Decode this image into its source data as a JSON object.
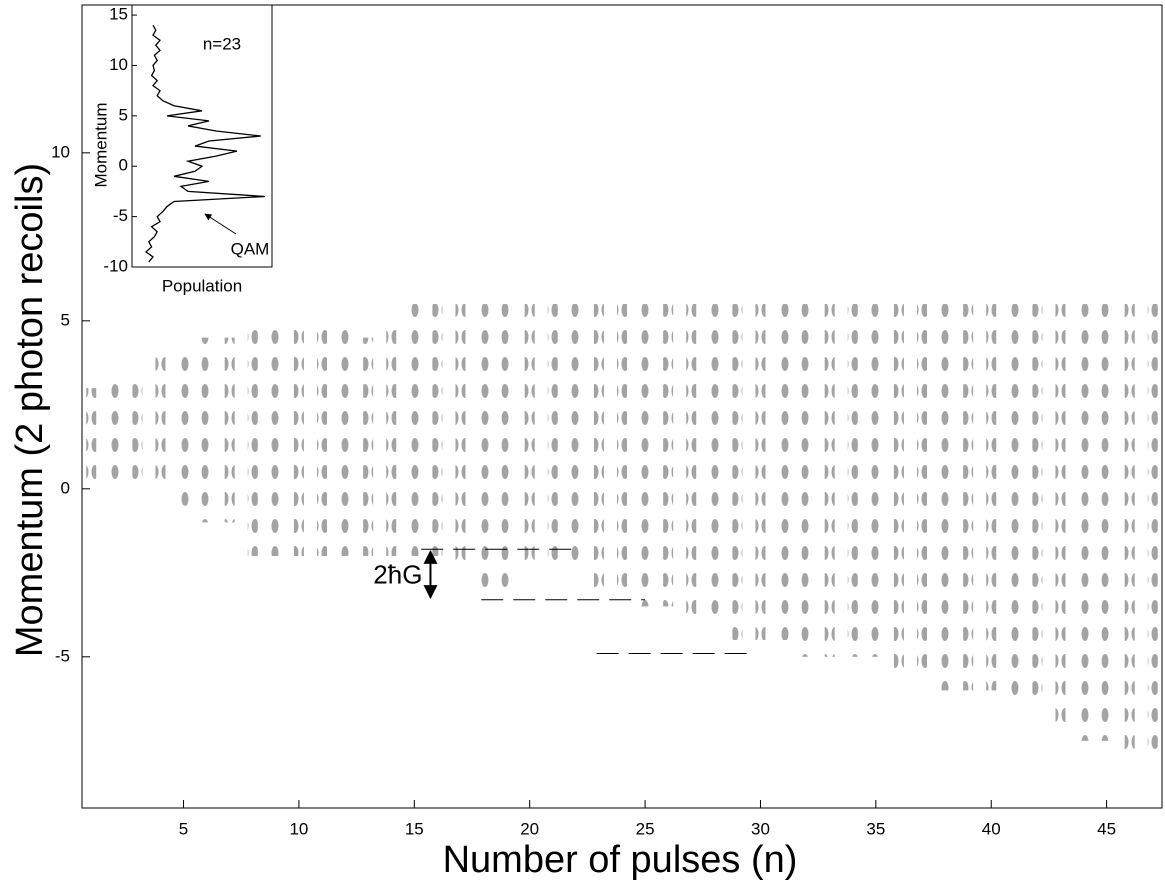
{
  "chart_data": [
    {
      "type": "heatmap",
      "xlabel": "Number of pulses (n)",
      "ylabel": "Momentum (2 photon recoils)",
      "xlim": [
        0.6,
        47.4
      ],
      "ylim": [
        -9.5,
        14.4
      ],
      "xticks": [
        5,
        10,
        15,
        20,
        25,
        30,
        35,
        40,
        45
      ],
      "yticks": [
        -5,
        0,
        5,
        10
      ],
      "x": [
        1,
        2,
        3,
        4,
        5,
        6,
        7,
        8,
        9,
        10,
        11,
        12,
        13,
        14,
        15,
        16,
        17,
        18,
        19,
        20,
        21,
        22,
        23,
        24,
        25,
        26,
        27,
        28,
        29,
        30,
        31,
        32,
        33,
        34,
        35,
        36,
        37,
        38,
        39,
        40,
        41,
        42,
        43,
        44,
        45,
        46,
        47
      ],
      "low": [
        0,
        0,
        0,
        0,
        -0.5,
        -1,
        -1,
        -2,
        -2,
        -2,
        -2,
        -2,
        -2,
        -2,
        -2,
        -2,
        -2.5,
        -3,
        -3,
        -2.5,
        -2.5,
        -2.5,
        -3,
        -3,
        -3.5,
        -3.5,
        -4,
        -4,
        -4.5,
        -4.5,
        -4.5,
        -5,
        -5,
        -5,
        -5,
        -5.5,
        -5.5,
        -6,
        -6,
        -6,
        -6.5,
        -6.5,
        -7,
        -7.5,
        -7.5,
        -8,
        -8
      ],
      "high": [
        3,
        3.5,
        3.5,
        4,
        4,
        4.5,
        4.5,
        5,
        5,
        5,
        5,
        5,
        4.5,
        5,
        5.5,
        5.5,
        5.5,
        5.5,
        5.5,
        5.5,
        5.5,
        5.5,
        5.5,
        5.5,
        5.5,
        5.5,
        5.5,
        5.5,
        5.5,
        5.5,
        5.5,
        5.5,
        5.5,
        5.5,
        5.5,
        5.5,
        5.5,
        5.5,
        5.5,
        5.5,
        5.5,
        5.5,
        5.5,
        5.5,
        5.5,
        5.5,
        5.5
      ],
      "guides": [
        {
          "x": [
            15.3,
            22
          ],
          "y": -1.8
        },
        {
          "x": [
            17.9,
            25
          ],
          "y": -3.3
        },
        {
          "x": [
            22.9,
            29.8
          ],
          "y": -4.9
        }
      ],
      "arrow": {
        "x": 15.7,
        "y": [
          -1.8,
          -3.3
        ],
        "label": "2ħG"
      }
    },
    {
      "type": "line",
      "orientation": "horizontal",
      "xlabel": "Population",
      "ylabel": "Momentum",
      "annotation": "n=23",
      "arrow_label": "QAM",
      "xlim": [
        0,
        1
      ],
      "ylim": [
        -10,
        16
      ],
      "yticks": [
        -10,
        -5,
        0,
        5,
        10,
        15
      ],
      "y": [
        -9.5,
        -9,
        -8.5,
        -8,
        -7.5,
        -7,
        -6.5,
        -6,
        -5.5,
        -5,
        -4.5,
        -4,
        -3.5,
        -3,
        -2.5,
        -2,
        -1.5,
        -1,
        -0.5,
        0,
        0.5,
        1,
        1.5,
        2,
        2.5,
        3,
        3.5,
        4,
        4.5,
        5,
        5.5,
        6,
        6.5,
        7,
        7.5,
        8,
        8.5,
        9,
        9.5,
        10,
        10.5,
        11,
        11.5,
        12,
        12.5,
        13,
        13.5,
        14
      ],
      "values": [
        0.12,
        0.15,
        0.1,
        0.14,
        0.12,
        0.16,
        0.18,
        0.14,
        0.2,
        0.18,
        0.22,
        0.25,
        0.3,
        0.95,
        0.4,
        0.35,
        0.55,
        0.3,
        0.45,
        0.5,
        0.4,
        0.6,
        0.75,
        0.45,
        0.55,
        0.92,
        0.6,
        0.4,
        0.55,
        0.25,
        0.5,
        0.3,
        0.22,
        0.18,
        0.2,
        0.15,
        0.18,
        0.14,
        0.16,
        0.15,
        0.18,
        0.16,
        0.2,
        0.17,
        0.2,
        0.15,
        0.17,
        0.15
      ]
    }
  ]
}
